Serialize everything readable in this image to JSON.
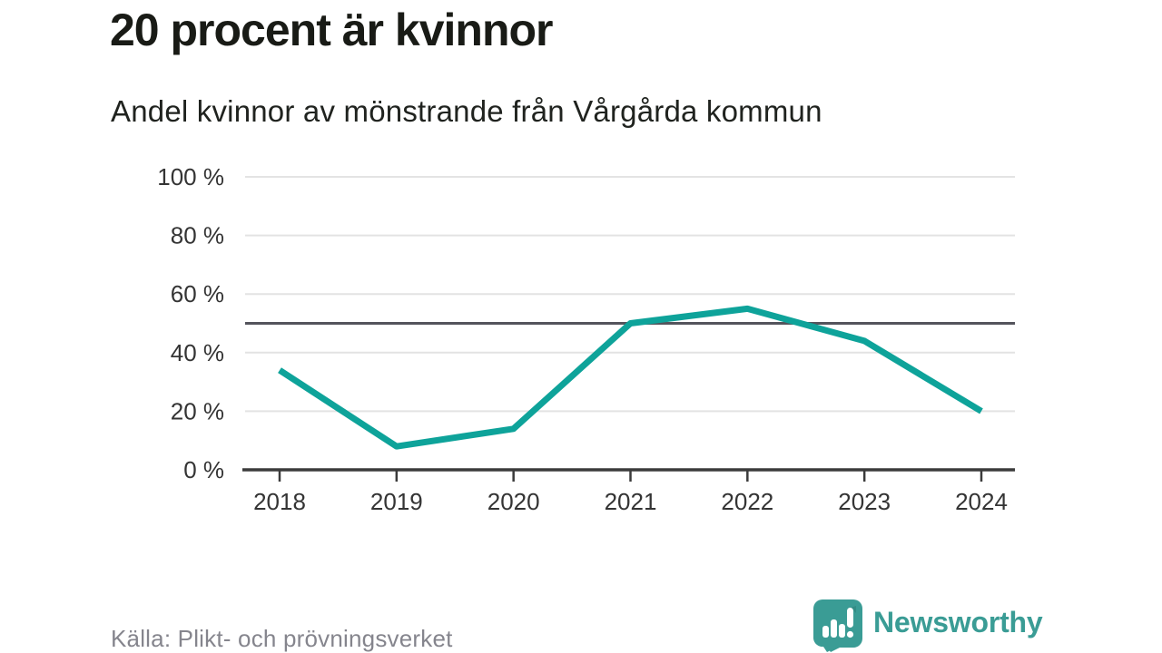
{
  "title": "20 procent är kvinnor",
  "subtitle": "Andel kvinnor av mönstrande från Vårgårda kommun",
  "source": "Källa: Plikt- och prövningsverket",
  "branding": {
    "name": "Newsworthy",
    "icon": "speech-bubble-bar-chart-icon",
    "color": "#3a9c95",
    "icon_dark_accent": "#2b7f79"
  },
  "colors": {
    "line": "#0ea39a",
    "gridline": "#e3e3e3",
    "reference_line": "#54545c",
    "axis": "#3b3b3b",
    "tick_label": "#343434",
    "source_text": "#85858d"
  },
  "chart_data": {
    "type": "line",
    "x": [
      "2018",
      "2019",
      "2020",
      "2021",
      "2022",
      "2023",
      "2024"
    ],
    "values": [
      34,
      8,
      14,
      50,
      55,
      44,
      20
    ],
    "series_name": "Andel kvinnor av mönstrande (%)",
    "title": "20 procent är kvinnor",
    "subtitle": "Andel kvinnor av mönstrande från Vårgårda kommun",
    "xlabel": "",
    "ylabel": "",
    "unit": "%",
    "ylim": [
      0,
      100
    ],
    "yticks": [
      0,
      20,
      40,
      60,
      80,
      100
    ],
    "ytick_suffix": " %",
    "reference_line": 50,
    "grid": "horizontal",
    "legend": "none"
  }
}
